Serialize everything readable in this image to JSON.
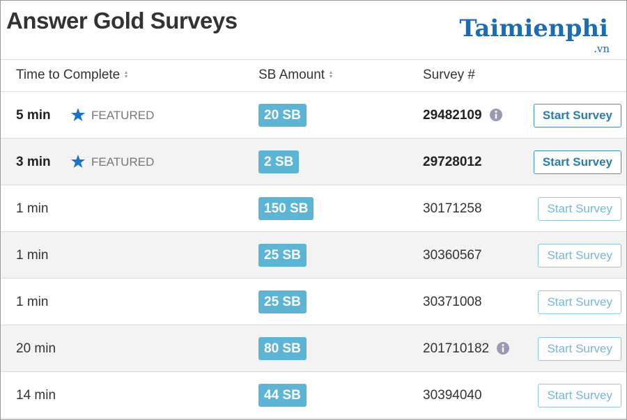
{
  "header": {
    "title": "Answer Gold Surveys"
  },
  "logo": {
    "name": "Taimienphi",
    "domain": ".vn"
  },
  "table": {
    "columns": [
      {
        "label": "Time to Complete",
        "sortable": true
      },
      {
        "label": "SB Amount",
        "sortable": true
      },
      {
        "label": "Survey #",
        "sortable": false
      }
    ],
    "rows": [
      {
        "time": "5 min",
        "featured": "FEATURED",
        "amount": "20 SB",
        "survey": "29482109",
        "info": true,
        "action": "Start Survey"
      },
      {
        "time": "3 min",
        "featured": "FEATURED",
        "amount": "2 SB",
        "survey": "29728012",
        "info": false,
        "action": "Start Survey"
      },
      {
        "time": "1 min",
        "amount": "150 SB",
        "survey": "30171258",
        "info": false,
        "action": "Start Survey"
      },
      {
        "time": "1 min",
        "amount": "25 SB",
        "survey": "30360567",
        "info": false,
        "action": "Start Survey"
      },
      {
        "time": "1 min",
        "amount": "25 SB",
        "survey": "30371008",
        "info": false,
        "action": "Start Survey"
      },
      {
        "time": "20 min",
        "amount": "80 SB",
        "survey": "201710182",
        "info": true,
        "action": "Start Survey"
      },
      {
        "time": "14 min",
        "amount": "44 SB",
        "survey": "30394040",
        "info": false,
        "action": "Start Survey"
      }
    ]
  }
}
